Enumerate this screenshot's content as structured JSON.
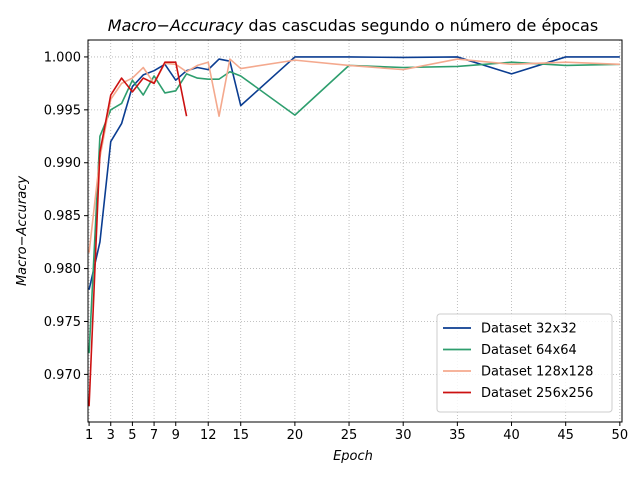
{
  "chart_data": {
    "type": "line",
    "title_italic": "Macro−Accuracy",
    "title_rest": " das cascudas segundo o número de épocas",
    "xlabel": "Epoch",
    "ylabel": "Macro−Accuracy",
    "xlim": [
      0.9,
      50.2
    ],
    "ylim": [
      0.9655,
      1.0016
    ],
    "x_ticks": [
      1,
      3,
      5,
      7,
      9,
      12,
      15,
      20,
      25,
      30,
      35,
      40,
      45,
      50
    ],
    "y_ticks": [
      0.97,
      0.975,
      0.98,
      0.985,
      0.99,
      0.995,
      1.0
    ],
    "y_tick_labels": [
      "0.970",
      "0.975",
      "0.980",
      "0.985",
      "0.990",
      "0.995",
      "1.000"
    ],
    "grid": true,
    "legend_position": "lower-right",
    "series": [
      {
        "name": "Dataset 32x32",
        "color": "#0b3d91",
        "x": [
          1,
          2,
          3,
          4,
          5,
          6,
          7,
          8,
          9,
          10,
          11,
          12,
          13,
          14,
          15,
          20,
          25,
          30,
          35,
          40,
          45,
          50
        ],
        "y": [
          0.978,
          0.9825,
          0.992,
          0.9937,
          0.9972,
          0.9983,
          0.9987,
          0.9993,
          0.9978,
          0.9987,
          0.999,
          0.9988,
          0.9998,
          0.9996,
          0.9954,
          1.0,
          1.0,
          0.99995,
          1.0,
          0.9984,
          1.0,
          1.0
        ]
      },
      {
        "name": "Dataset 64x64",
        "color": "#2e9e6e",
        "x": [
          1,
          2,
          3,
          4,
          5,
          6,
          7,
          8,
          9,
          10,
          11,
          12,
          13,
          14,
          15,
          20,
          25,
          30,
          35,
          40,
          45,
          50
        ],
        "y": [
          0.972,
          0.9925,
          0.995,
          0.9956,
          0.9978,
          0.9964,
          0.9982,
          0.9966,
          0.9968,
          0.9984,
          0.998,
          0.9979,
          0.9979,
          0.9986,
          0.9982,
          0.9945,
          0.9992,
          0.999,
          0.9991,
          0.9995,
          0.9992,
          0.9993
        ]
      },
      {
        "name": "Dataset 128x128",
        "color": "#f4a98e",
        "x": [
          1,
          2,
          3,
          4,
          5,
          6,
          7,
          8,
          9,
          10,
          11,
          12,
          13,
          14,
          15,
          20,
          25,
          30,
          35,
          40,
          45,
          50
        ],
        "y": [
          0.9815,
          0.9905,
          0.996,
          0.9975,
          0.998,
          0.999,
          0.9975,
          0.9994,
          0.9993,
          0.9986,
          0.9992,
          0.9995,
          0.9944,
          0.9998,
          0.9989,
          0.9997,
          0.9992,
          0.9988,
          0.9998,
          0.9993,
          0.9995,
          0.9993
        ]
      },
      {
        "name": "Dataset 256x256",
        "color": "#cc1111",
        "x": [
          1,
          2,
          3,
          4,
          5,
          6,
          7,
          8,
          9,
          10
        ],
        "y": [
          0.967,
          0.991,
          0.9964,
          0.998,
          0.9967,
          0.998,
          0.9975,
          0.9995,
          0.9995,
          0.9944
        ]
      }
    ]
  }
}
